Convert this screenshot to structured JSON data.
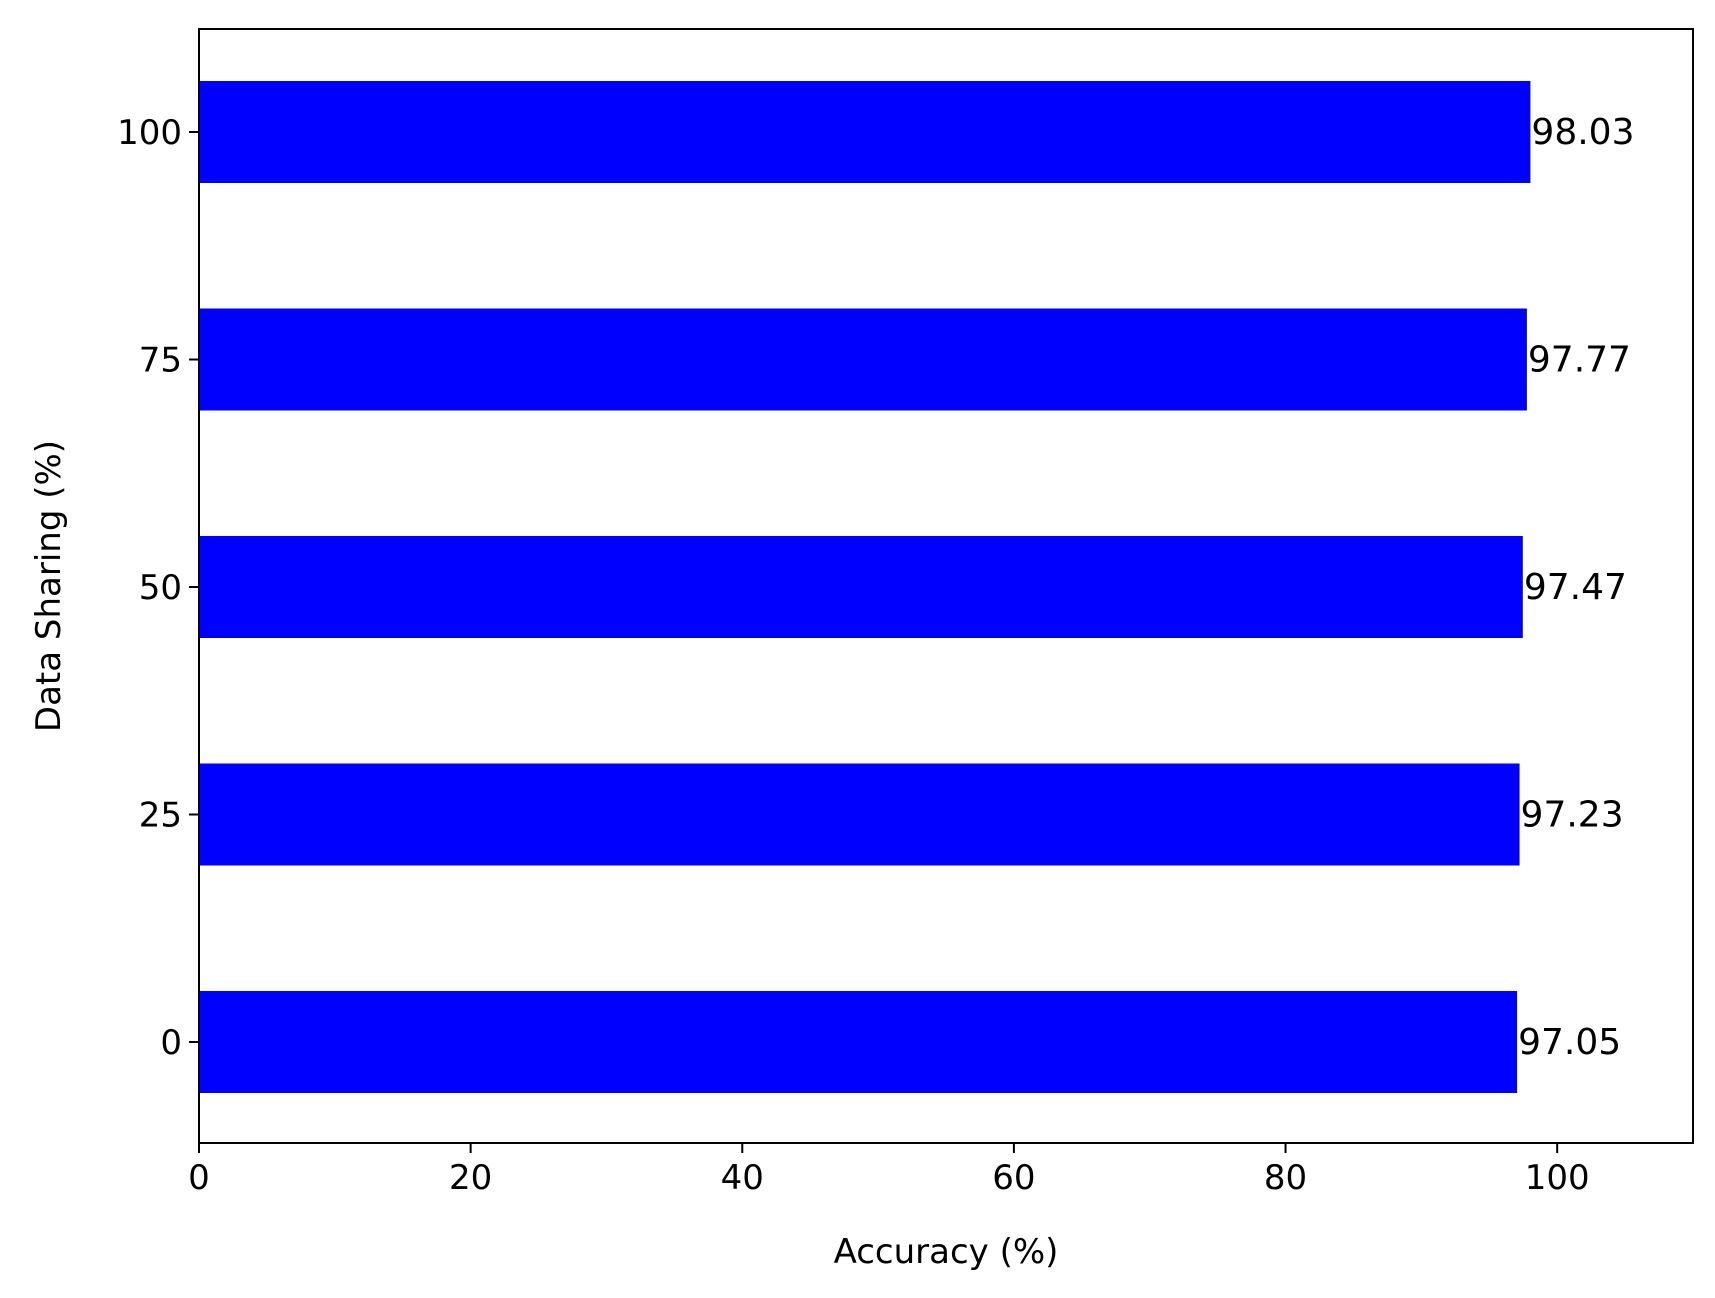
{
  "chart_data": {
    "type": "bar",
    "orientation": "horizontal",
    "categories": [
      "0",
      "25",
      "50",
      "75",
      "100"
    ],
    "values": [
      97.05,
      97.23,
      97.47,
      97.77,
      98.03
    ],
    "data_labels": [
      "97.05",
      "97.23",
      "97.47",
      "97.77",
      "98.03"
    ],
    "bar_color": "#0000ff",
    "xlabel": "Accuracy (%)",
    "ylabel": "Data Sharing (%)",
    "xlim": [
      0,
      110
    ],
    "xticks": [
      0,
      20,
      40,
      60,
      80,
      100
    ],
    "xtick_labels": [
      "0",
      "20",
      "40",
      "60",
      "80",
      "100"
    ],
    "grid": false,
    "legend": "none"
  }
}
